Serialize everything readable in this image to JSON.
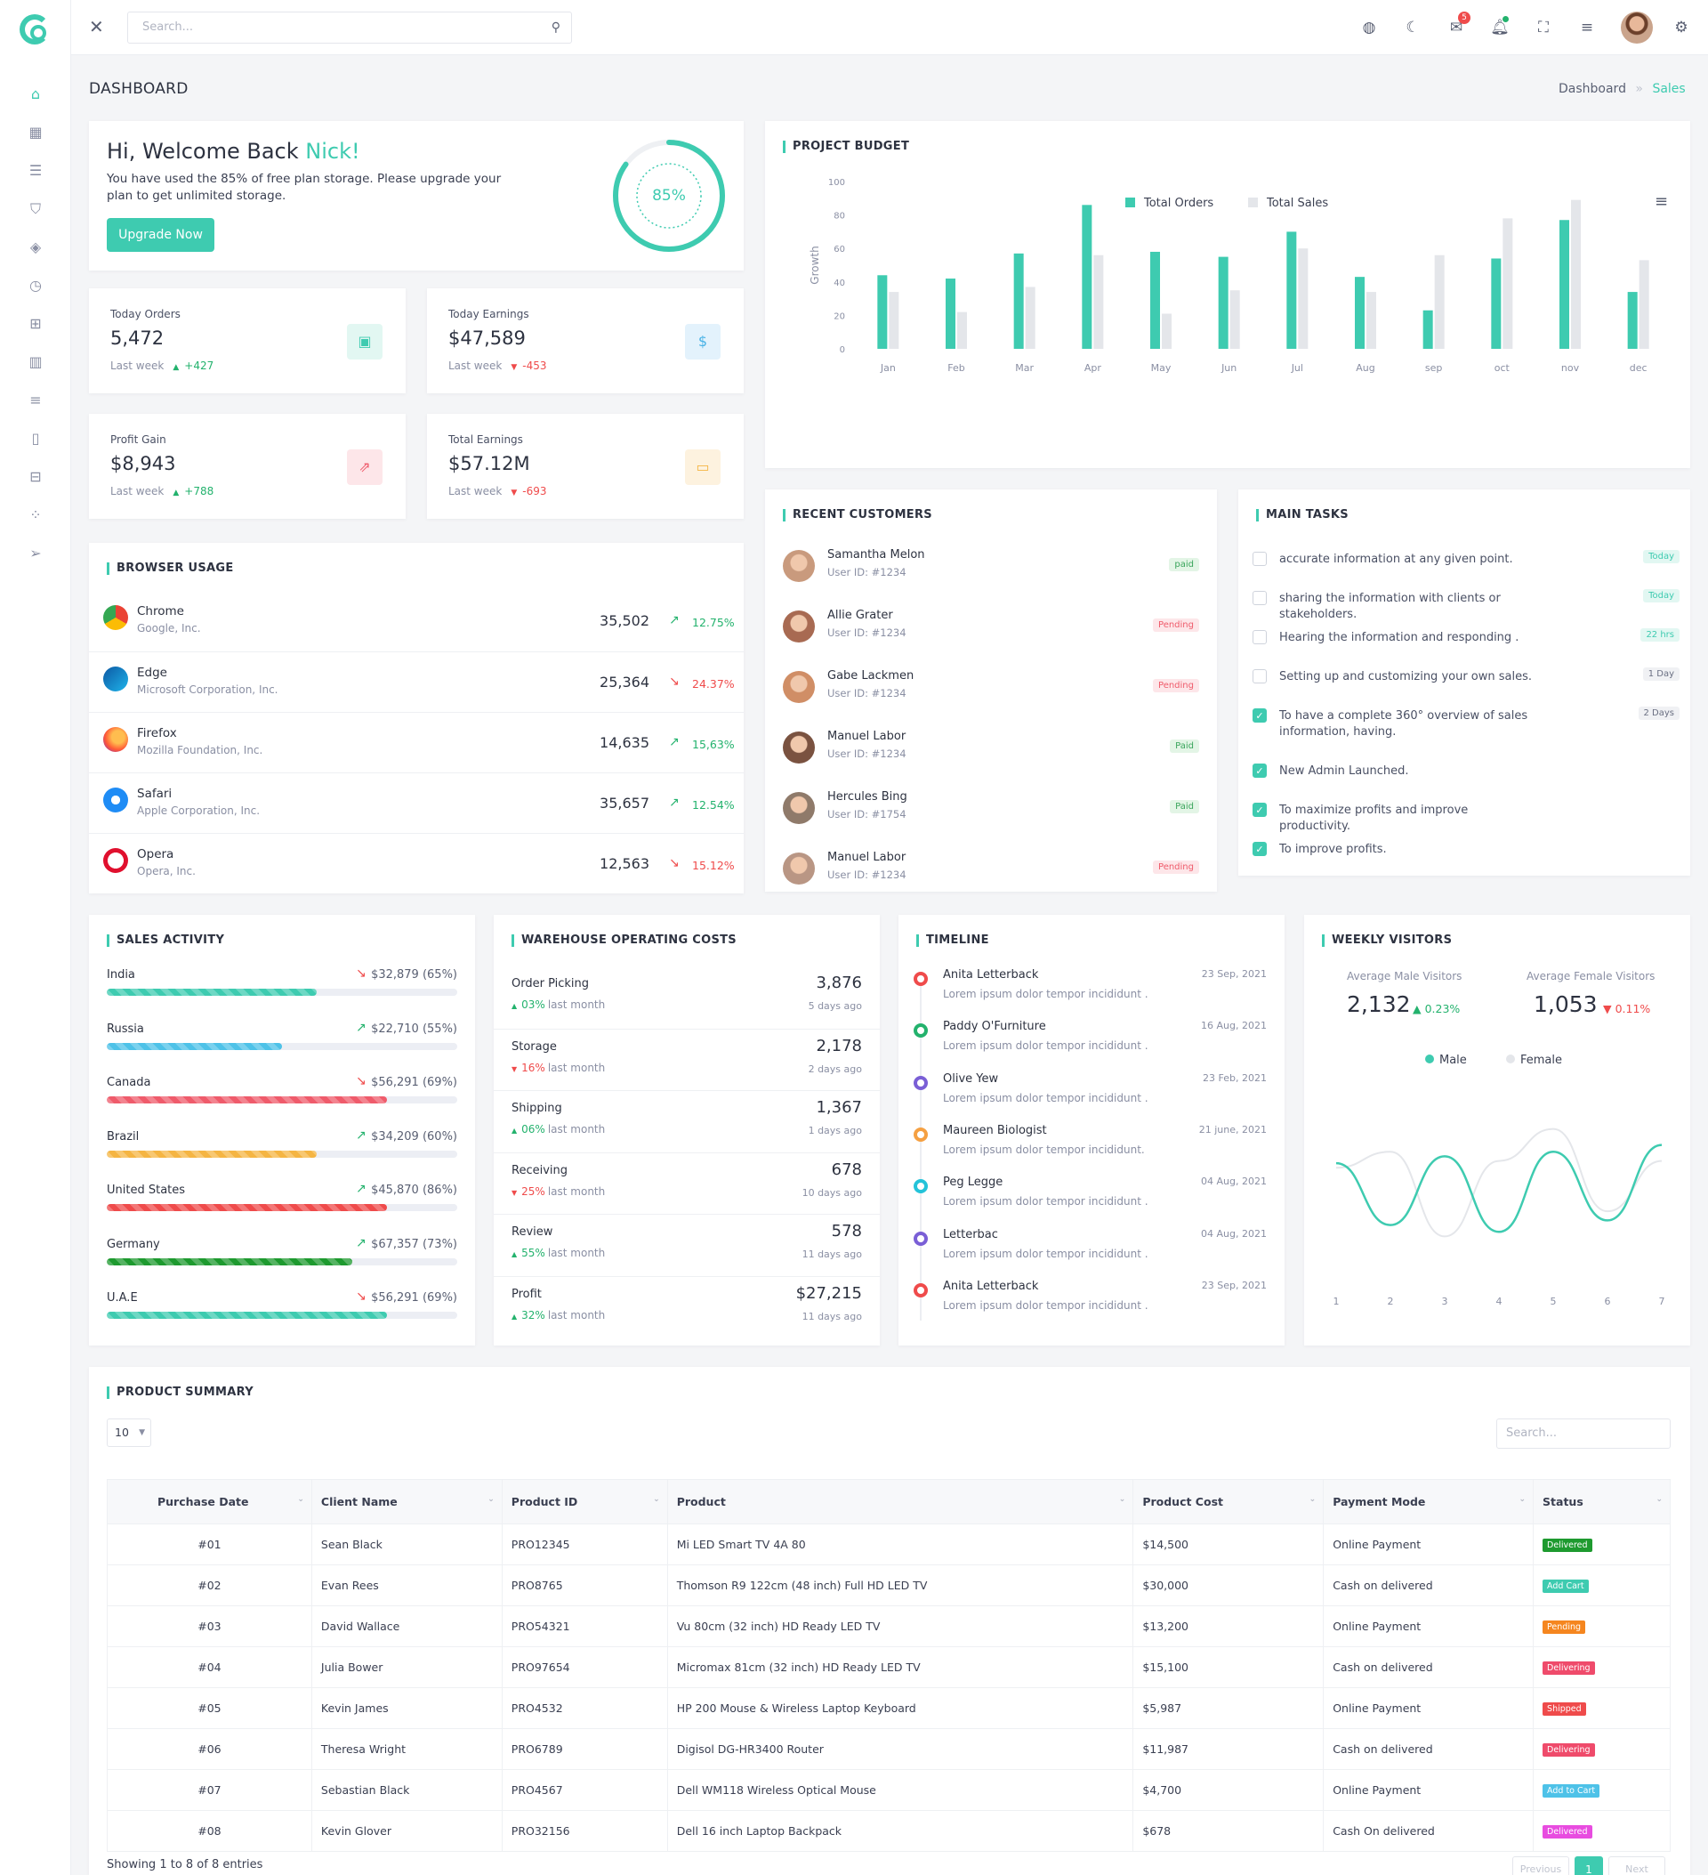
{
  "header": {
    "search_placeholder": "Search...",
    "mail_badge": "5"
  },
  "page": {
    "title": "DASHBOARD",
    "breadcrumb": [
      "Dashboard",
      "Sales"
    ]
  },
  "welcome": {
    "greeting": "Hi, Welcome Back",
    "name": "Nick!",
    "text": "You have used the 85% of free plan storage. Please upgrade your plan to get unlimited storage.",
    "button": "Upgrade Now",
    "percent_label": "85%",
    "percent": 85
  },
  "stats": [
    {
      "label": "Today Orders",
      "value": "5,472",
      "week": "Last week",
      "change": "+427",
      "trend": "up",
      "icon": "calendar-icon",
      "color": "#3ecbb0",
      "bg": "#e2f7f2"
    },
    {
      "label": "Today Earnings",
      "value": "$47,589",
      "week": "Last week",
      "change": "-453",
      "trend": "down",
      "icon": "dollar-icon",
      "color": "#4ab3e6",
      "bg": "#e3f2fc"
    },
    {
      "label": "Profit Gain",
      "value": "$8,943",
      "week": "Last week",
      "change": "+788",
      "trend": "up",
      "icon": "external-link-icon",
      "color": "#ef5b6b",
      "bg": "#fde6e9"
    },
    {
      "label": "Total Earnings",
      "value": "$57.12M",
      "week": "Last week",
      "change": "-693",
      "trend": "down",
      "icon": "credit-card-icon",
      "color": "#f5b543",
      "bg": "#fdf2df"
    }
  ],
  "browser_usage": {
    "title": "BROWSER USAGE",
    "rows": [
      {
        "name": "Chrome",
        "company": "Google, Inc.",
        "value": "35,502",
        "pct": "12.75%",
        "trend": "up"
      },
      {
        "name": "Edge",
        "company": "Microsoft Corporation, Inc.",
        "value": "25,364",
        "pct": "24.37%",
        "trend": "down"
      },
      {
        "name": "Firefox",
        "company": "Mozilla Foundation, Inc.",
        "value": "14,635",
        "pct": "15,63%",
        "trend": "up"
      },
      {
        "name": "Safari",
        "company": "Apple Corporation, Inc.",
        "value": "35,657",
        "pct": "12.54%",
        "trend": "up"
      },
      {
        "name": "Opera",
        "company": "Opera, Inc.",
        "value": "12,563",
        "pct": "15.12%",
        "trend": "down"
      }
    ]
  },
  "project_budget": {
    "title": "PROJECT BUDGET",
    "ylabel": "Growth",
    "legend": [
      "Total Orders",
      "Total Sales"
    ]
  },
  "chart_data": [
    {
      "type": "bar",
      "title": "PROJECT BUDGET",
      "ylabel": "Growth",
      "categories": [
        "Jan",
        "Feb",
        "Mar",
        "Apr",
        "May",
        "Jun",
        "Jul",
        "Aug",
        "sep",
        "oct",
        "nov",
        "dec"
      ],
      "ylim": [
        0,
        100
      ],
      "yticks": [
        0,
        20,
        40,
        60,
        80,
        100
      ],
      "series": [
        {
          "name": "Total Orders",
          "color": "#3ecbb0",
          "values": [
            44,
            42,
            57,
            86,
            58,
            55,
            70,
            43,
            23,
            54,
            77,
            34
          ]
        },
        {
          "name": "Total Sales",
          "color": "#e4e6ea",
          "values": [
            34,
            22,
            37,
            56,
            21,
            35,
            60,
            34,
            56,
            78,
            89,
            53
          ]
        }
      ],
      "legend": "top-center",
      "grid": false
    },
    {
      "type": "line",
      "title": "WEEKLY VISITORS",
      "x": [
        1,
        2,
        3,
        4,
        5,
        6,
        7
      ],
      "series": [
        {
          "name": "Male",
          "color": "#3ecbb0",
          "values": [
            47,
            20,
            50,
            17,
            52,
            22,
            55
          ]
        },
        {
          "name": "Female",
          "color": "#e4e6ea",
          "values": [
            45,
            52,
            15,
            48,
            62,
            26,
            48
          ]
        }
      ],
      "legend": "top-center",
      "grid": false
    }
  ],
  "recent_customers": {
    "title": "RECENT CUSTOMERS",
    "rows": [
      {
        "name": "Samantha Melon",
        "id": "User ID: #1234",
        "status": "paid",
        "kind": "paid"
      },
      {
        "name": "Allie Grater",
        "id": "User ID: #1234",
        "status": "Pending",
        "kind": "pending"
      },
      {
        "name": "Gabe Lackmen",
        "id": "User ID: #1234",
        "status": "Pending",
        "kind": "pending"
      },
      {
        "name": "Manuel Labor",
        "id": "User ID: #1234",
        "status": "Paid",
        "kind": "paid"
      },
      {
        "name": "Hercules Bing",
        "id": "User ID: #1754",
        "status": "Paid",
        "kind": "paid"
      },
      {
        "name": "Manuel Labor",
        "id": "User ID: #1234",
        "status": "Pending",
        "kind": "pending"
      }
    ]
  },
  "main_tasks": {
    "title": "MAIN TASKS",
    "rows": [
      {
        "text": "accurate information at any given point.",
        "badge": "Today",
        "checked": false,
        "badge_kind": "green"
      },
      {
        "text": "sharing the information with clients or stakeholders.",
        "badge": "Today",
        "checked": false,
        "badge_kind": "green"
      },
      {
        "text": "Hearing the information and responding .",
        "badge": "22 hrs",
        "checked": false,
        "badge_kind": "green"
      },
      {
        "text": "Setting up and customizing your own sales.",
        "badge": "1 Day",
        "checked": false,
        "badge_kind": "grey"
      },
      {
        "text": "To have a complete 360° overview of sales information, having.",
        "badge": "2 Days",
        "checked": true,
        "badge_kind": "grey"
      },
      {
        "text": "New Admin Launched.",
        "badge": "",
        "checked": true,
        "badge_kind": ""
      },
      {
        "text": "To maximize profits and improve productivity.",
        "badge": "",
        "checked": true,
        "badge_kind": ""
      },
      {
        "text": "To improve profits.",
        "badge": "",
        "checked": true,
        "badge_kind": ""
      }
    ]
  },
  "sales_activity": {
    "title": "SALES ACTIVITY",
    "rows": [
      {
        "country": "India",
        "value": "$32,879 (65%)",
        "pct": 0.6,
        "trend": "down",
        "color": "#3ecbb0"
      },
      {
        "country": "Russia",
        "value": "$22,710 (55%)",
        "pct": 0.5,
        "trend": "up",
        "color": "#4ec2e8"
      },
      {
        "country": "Canada",
        "value": "$56,291 (69%)",
        "pct": 0.8,
        "trend": "down",
        "color": "#ef5b6b"
      },
      {
        "country": "Brazil",
        "value": "$34,209 (60%)",
        "pct": 0.6,
        "trend": "up",
        "color": "#f5b543"
      },
      {
        "country": "United States",
        "value": "$45,870 (86%)",
        "pct": 0.8,
        "trend": "up",
        "color": "#ef4b4b"
      },
      {
        "country": "Germany",
        "value": "$67,357 (73%)",
        "pct": 0.7,
        "trend": "up",
        "color": "#1e9a2f"
      },
      {
        "country": "U.A.E",
        "value": "$56,291 (69%)",
        "pct": 0.8,
        "trend": "down",
        "color": "#3ecbb0"
      }
    ]
  },
  "warehouse": {
    "title": "WAREHOUSE OPERATING COSTS",
    "rows": [
      {
        "name": "Order Picking",
        "value": "3,876",
        "pct": "03%",
        "label": "last month",
        "ago": "5 days ago",
        "trend": "up"
      },
      {
        "name": "Storage",
        "value": "2,178",
        "pct": "16%",
        "label": "last month",
        "ago": "2 days ago",
        "trend": "down"
      },
      {
        "name": "Shipping",
        "value": "1,367",
        "pct": "06%",
        "label": "last month",
        "ago": "1 days ago",
        "trend": "up"
      },
      {
        "name": "Receiving",
        "value": "678",
        "pct": "25%",
        "label": "last month",
        "ago": "10 days ago",
        "trend": "down"
      },
      {
        "name": "Review",
        "value": "578",
        "pct": "55%",
        "label": "last month",
        "ago": "11 days ago",
        "trend": "up"
      },
      {
        "name": "Profit",
        "value": "$27,215",
        "pct": "32%",
        "label": "last month",
        "ago": "11 days ago",
        "trend": "up"
      }
    ]
  },
  "timeline": {
    "title": "TIMELINE",
    "rows": [
      {
        "name": "Anita Letterback",
        "date": "23 Sep, 2021",
        "text": "Lorem ipsum dolor tempor incididunt .",
        "color": "#ef4b4b"
      },
      {
        "name": "Paddy O'Furniture",
        "date": "16 Aug, 2021",
        "text": "Lorem ipsum dolor tempor incididunt .",
        "color": "#23b26d"
      },
      {
        "name": "Olive Yew",
        "date": "23 Feb, 2021",
        "text": "Lorem ipsum dolor tempor incididunt .",
        "color": "#7a5fd6"
      },
      {
        "name": "Maureen Biologist",
        "date": "21 june, 2021",
        "text": "Lorem ipsum dolor tempor incididunt.",
        "color": "#f5a042"
      },
      {
        "name": "Peg Legge",
        "date": "04 Aug, 2021",
        "text": "Lorem ipsum dolor tempor incididunt .",
        "color": "#24c3d9"
      },
      {
        "name": "Letterbac",
        "date": "04 Aug, 2021",
        "text": "Lorem ipsum dolor tempor incididunt .",
        "color": "#7a5fd6"
      },
      {
        "name": "Anita Letterback",
        "date": "23 Sep, 2021",
        "text": "Lorem ipsum dolor tempor incididunt .",
        "color": "#ef4b4b"
      }
    ]
  },
  "weekly_visitors": {
    "title": "WEEKLY VISITORS",
    "male_label": "Average Male Visitors",
    "male_value": "2,132",
    "male_change": "0.23%",
    "female_label": "Average Female Visitors",
    "female_value": "1,053",
    "female_change": "0.11%",
    "legend": [
      "Male",
      "Female"
    ]
  },
  "product_summary": {
    "title": "PRODUCT SUMMARY",
    "page_size": "10",
    "search_placeholder": "Search...",
    "columns": [
      "Purchase Date",
      "Client Name",
      "Product ID",
      "Product",
      "Product Cost",
      "Payment Mode",
      "Status"
    ],
    "rows": [
      {
        "date": "#01",
        "client": "Sean Black",
        "pid": "PRO12345",
        "product": "Mi LED Smart TV 4A 80",
        "cost": "$14,500",
        "mode": "Online Payment",
        "status": "Delivered",
        "color": "#1e9a2f"
      },
      {
        "date": "#02",
        "client": "Evan Rees",
        "pid": "PRO8765",
        "product": "Thomson R9 122cm (48 inch) Full HD LED TV",
        "cost": "$30,000",
        "mode": "Cash on delivered",
        "status": "Add Cart",
        "color": "#3ecbb0"
      },
      {
        "date": "#03",
        "client": "David Wallace",
        "pid": "PRO54321",
        "product": "Vu 80cm (32 inch) HD Ready LED TV",
        "cost": "$13,200",
        "mode": "Online Payment",
        "status": "Pending",
        "color": "#f5861f"
      },
      {
        "date": "#04",
        "client": "Julia Bower",
        "pid": "PRO97654",
        "product": "Micromax 81cm (32 inch) HD Ready LED TV",
        "cost": "$15,100",
        "mode": "Cash on delivered",
        "status": "Delivering",
        "color": "#ef4b6b"
      },
      {
        "date": "#05",
        "client": "Kevin James",
        "pid": "PRO4532",
        "product": "HP 200 Mouse & Wireless Laptop Keyboard",
        "cost": "$5,987",
        "mode": "Online Payment",
        "status": "Shipped",
        "color": "#ef4b4b"
      },
      {
        "date": "#06",
        "client": "Theresa Wright",
        "pid": "PRO6789",
        "product": "Digisol DG-HR3400 Router",
        "cost": "$11,987",
        "mode": "Cash on delivered",
        "status": "Delivering",
        "color": "#ef4b6b"
      },
      {
        "date": "#07",
        "client": "Sebastian Black",
        "pid": "PRO4567",
        "product": "Dell WM118 Wireless Optical Mouse",
        "cost": "$4,700",
        "mode": "Online Payment",
        "status": "Add to Cart",
        "color": "#4ec2e8"
      },
      {
        "date": "#08",
        "client": "Kevin Glover",
        "pid": "PRO32156",
        "product": "Dell 16 inch Laptop Backpack",
        "cost": "$678",
        "mode": "Cash On delivered",
        "status": "Delivered",
        "color": "#e84ce0"
      }
    ],
    "footer": "Showing 1 to 8 of 8 entries",
    "prev": "Previous",
    "page": "1",
    "next": "Next"
  }
}
